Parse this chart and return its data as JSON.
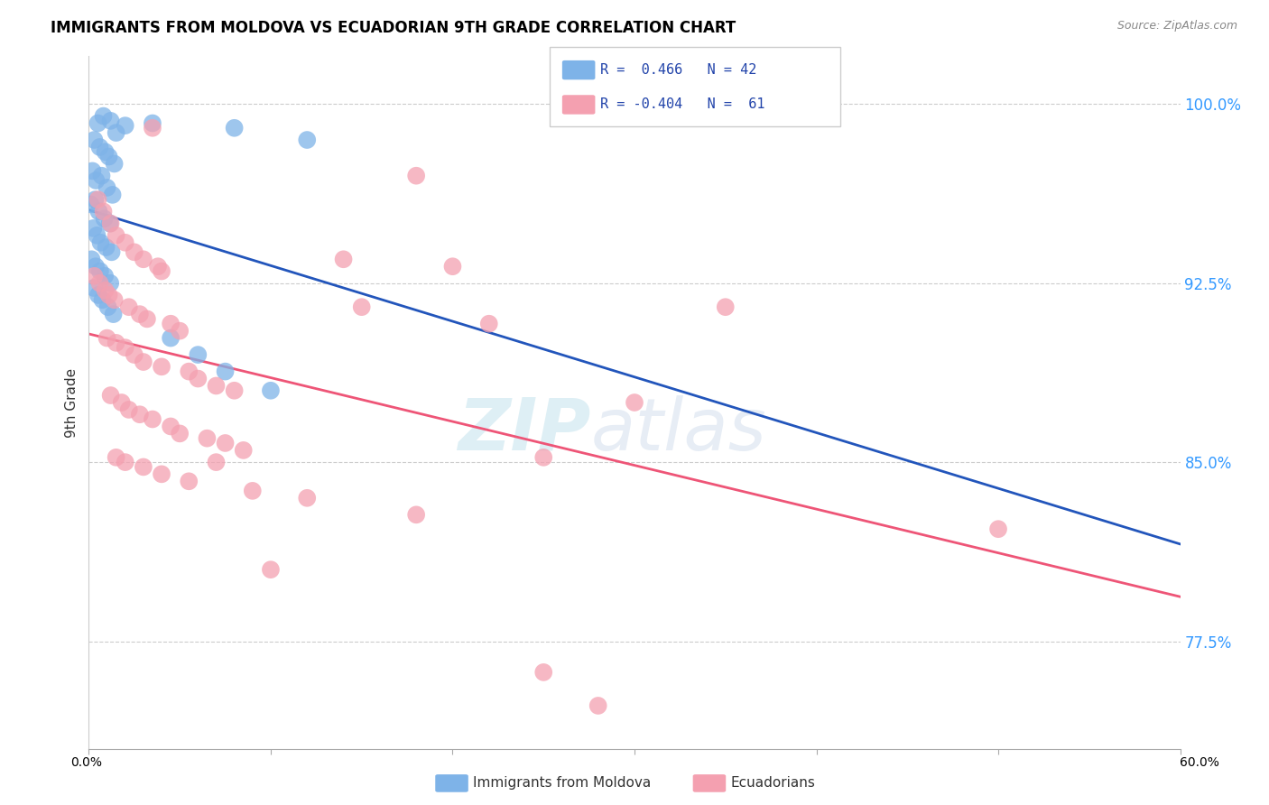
{
  "title": "IMMIGRANTS FROM MOLDOVA VS ECUADORIAN 9TH GRADE CORRELATION CHART",
  "source": "Source: ZipAtlas.com",
  "ylabel": "9th Grade",
  "xlim": [
    0.0,
    60.0
  ],
  "ylim": [
    73.0,
    102.0
  ],
  "yticks": [
    77.5,
    85.0,
    92.5,
    100.0
  ],
  "ytick_labels": [
    "77.5%",
    "85.0%",
    "92.5%",
    "100.0%"
  ],
  "legend_line1": "R =  0.466   N = 42",
  "legend_line2": "R = -0.404   N =  61",
  "blue_color": "#7EB3E8",
  "pink_color": "#F4A0B0",
  "blue_line_color": "#2255BB",
  "pink_line_color": "#EE5577",
  "watermark_zip": "ZIP",
  "watermark_atlas": "atlas",
  "blue_dots": [
    [
      0.5,
      99.2
    ],
    [
      0.8,
      99.5
    ],
    [
      1.2,
      99.3
    ],
    [
      1.5,
      98.8
    ],
    [
      2.0,
      99.1
    ],
    [
      0.3,
      98.5
    ],
    [
      0.6,
      98.2
    ],
    [
      0.9,
      98.0
    ],
    [
      1.1,
      97.8
    ],
    [
      1.4,
      97.5
    ],
    [
      0.2,
      97.2
    ],
    [
      0.4,
      96.8
    ],
    [
      0.7,
      97.0
    ],
    [
      1.0,
      96.5
    ],
    [
      1.3,
      96.2
    ],
    [
      0.1,
      95.8
    ],
    [
      0.35,
      96.0
    ],
    [
      0.55,
      95.5
    ],
    [
      0.85,
      95.2
    ],
    [
      1.15,
      95.0
    ],
    [
      0.25,
      94.8
    ],
    [
      0.45,
      94.5
    ],
    [
      0.65,
      94.2
    ],
    [
      0.95,
      94.0
    ],
    [
      1.25,
      93.8
    ],
    [
      0.15,
      93.5
    ],
    [
      0.38,
      93.2
    ],
    [
      0.62,
      93.0
    ],
    [
      0.88,
      92.8
    ],
    [
      1.18,
      92.5
    ],
    [
      0.28,
      92.3
    ],
    [
      0.52,
      92.0
    ],
    [
      0.75,
      91.8
    ],
    [
      1.05,
      91.5
    ],
    [
      1.35,
      91.2
    ],
    [
      3.5,
      99.2
    ],
    [
      8.0,
      99.0
    ],
    [
      12.0,
      98.5
    ],
    [
      4.5,
      90.2
    ],
    [
      6.0,
      89.5
    ],
    [
      7.5,
      88.8
    ],
    [
      10.0,
      88.0
    ]
  ],
  "pink_dots": [
    [
      3.5,
      99.0
    ],
    [
      0.5,
      96.0
    ],
    [
      0.8,
      95.5
    ],
    [
      1.2,
      95.0
    ],
    [
      1.5,
      94.5
    ],
    [
      2.0,
      94.2
    ],
    [
      2.5,
      93.8
    ],
    [
      3.0,
      93.5
    ],
    [
      3.8,
      93.2
    ],
    [
      4.0,
      93.0
    ],
    [
      0.3,
      92.8
    ],
    [
      0.6,
      92.5
    ],
    [
      0.9,
      92.2
    ],
    [
      1.1,
      92.0
    ],
    [
      1.4,
      91.8
    ],
    [
      2.2,
      91.5
    ],
    [
      2.8,
      91.2
    ],
    [
      3.2,
      91.0
    ],
    [
      4.5,
      90.8
    ],
    [
      5.0,
      90.5
    ],
    [
      1.0,
      90.2
    ],
    [
      1.5,
      90.0
    ],
    [
      2.0,
      89.8
    ],
    [
      2.5,
      89.5
    ],
    [
      3.0,
      89.2
    ],
    [
      4.0,
      89.0
    ],
    [
      5.5,
      88.8
    ],
    [
      6.0,
      88.5
    ],
    [
      7.0,
      88.2
    ],
    [
      8.0,
      88.0
    ],
    [
      1.2,
      87.8
    ],
    [
      1.8,
      87.5
    ],
    [
      2.2,
      87.2
    ],
    [
      2.8,
      87.0
    ],
    [
      3.5,
      86.8
    ],
    [
      4.5,
      86.5
    ],
    [
      5.0,
      86.2
    ],
    [
      6.5,
      86.0
    ],
    [
      7.5,
      85.8
    ],
    [
      8.5,
      85.5
    ],
    [
      1.5,
      85.2
    ],
    [
      2.0,
      85.0
    ],
    [
      3.0,
      84.8
    ],
    [
      4.0,
      84.5
    ],
    [
      5.5,
      84.2
    ],
    [
      7.0,
      85.0
    ],
    [
      9.0,
      83.8
    ],
    [
      12.0,
      83.5
    ],
    [
      18.0,
      82.8
    ],
    [
      25.0,
      85.2
    ],
    [
      10.0,
      80.5
    ],
    [
      20.0,
      93.2
    ],
    [
      15.0,
      91.5
    ],
    [
      30.0,
      87.5
    ],
    [
      14.0,
      93.5
    ],
    [
      22.0,
      90.8
    ],
    [
      50.0,
      82.2
    ],
    [
      25.0,
      76.2
    ],
    [
      28.0,
      74.8
    ],
    [
      35.0,
      91.5
    ],
    [
      18.0,
      97.0
    ]
  ]
}
